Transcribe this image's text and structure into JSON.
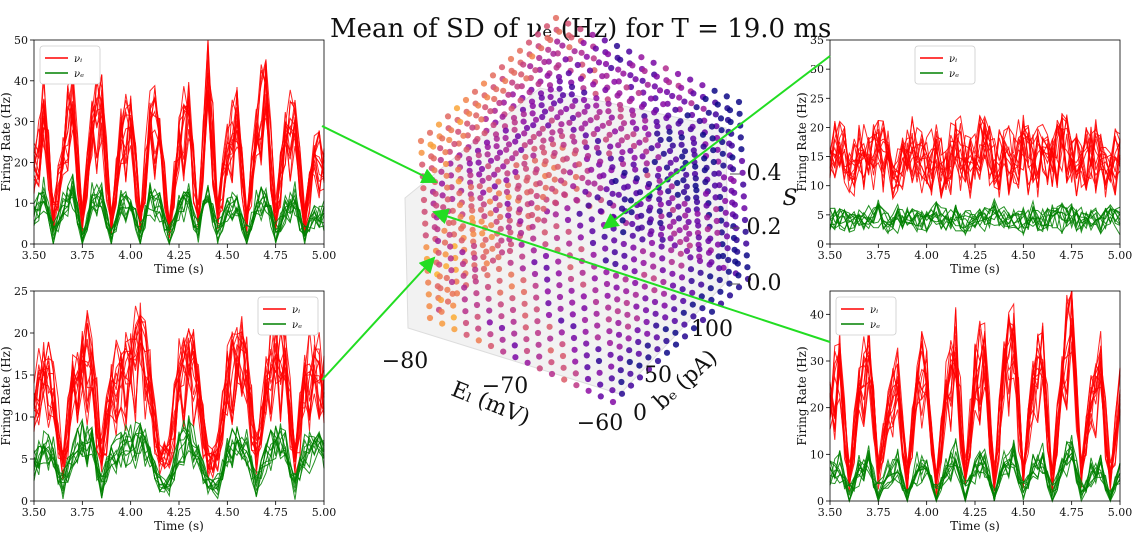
{
  "title": "Mean of SD of νₑ (Hz) for T = 19.0 ms",
  "colors": {
    "nu_i": "#ff0000",
    "nu_e": "#008000",
    "arrow": "#22dd22"
  },
  "cube": {
    "x_label": "Eₗ (mV)",
    "x_ticks": [
      "−80",
      "−70",
      "−60"
    ],
    "y_label": "bₑ (pA)",
    "y_ticks": [
      "0",
      "50",
      "100"
    ],
    "z_label": "S",
    "z_ticks": [
      "0.0",
      "0.2",
      "0.4"
    ],
    "colormap": "plasma"
  },
  "chart_data": [
    {
      "type": "line",
      "position": "top-left",
      "xlabel": "Time (s)",
      "ylabel": "Firing Rate (Hz)",
      "xlim": [
        3.5,
        5.0
      ],
      "ylim": [
        0,
        50
      ],
      "xticks": [
        "3.50",
        "3.75",
        "4.00",
        "4.25",
        "4.50",
        "4.75",
        "5.00"
      ],
      "yticks": [
        "0",
        "10",
        "20",
        "30",
        "40",
        "50"
      ],
      "legend": "top-left",
      "series": [
        {
          "name": "νᵢ",
          "x": [
            3.5,
            3.55,
            3.6,
            3.65,
            3.7,
            3.75,
            3.8,
            3.85,
            3.9,
            3.95,
            4.0,
            4.05,
            4.1,
            4.15,
            4.2,
            4.25,
            4.3,
            4.35,
            4.4,
            4.45,
            4.5,
            4.55,
            4.6,
            4.65,
            4.7,
            4.75,
            4.8,
            4.85,
            4.9,
            4.95,
            5.0
          ],
          "values": [
            20,
            35,
            8,
            22,
            38,
            6,
            30,
            36,
            5,
            28,
            32,
            6,
            33,
            30,
            5,
            27,
            33,
            7,
            46,
            8,
            25,
            32,
            6,
            30,
            40,
            7,
            28,
            32,
            6,
            24,
            20
          ]
        },
        {
          "name": "νₑ",
          "x": [
            3.5,
            3.55,
            3.6,
            3.65,
            3.7,
            3.75,
            3.8,
            3.85,
            3.9,
            3.95,
            4.0,
            4.05,
            4.1,
            4.15,
            4.2,
            4.25,
            4.3,
            4.35,
            4.4,
            4.45,
            4.5,
            4.55,
            4.6,
            4.65,
            4.7,
            4.75,
            4.8,
            4.85,
            4.9,
            4.95,
            5.0
          ],
          "values": [
            8,
            13,
            3,
            9,
            14,
            2,
            11,
            12,
            2,
            10,
            11,
            3,
            12,
            10,
            2,
            9,
            11,
            3,
            14,
            3,
            9,
            11,
            2,
            10,
            12,
            3,
            9,
            11,
            2,
            8,
            7
          ]
        }
      ]
    },
    {
      "type": "line",
      "position": "bottom-left",
      "xlabel": "Time (s)",
      "ylabel": "Firing Rate (Hz)",
      "xlim": [
        3.5,
        5.0
      ],
      "ylim": [
        0,
        25
      ],
      "xticks": [
        "3.50",
        "3.75",
        "4.00",
        "4.25",
        "4.50",
        "4.75",
        "5.00"
      ],
      "yticks": [
        "0",
        "5",
        "10",
        "15",
        "20",
        "25"
      ],
      "legend": "top-right",
      "series": [
        {
          "name": "νᵢ",
          "x": [
            3.5,
            3.55,
            3.6,
            3.65,
            3.7,
            3.75,
            3.8,
            3.85,
            3.9,
            3.95,
            4.0,
            4.05,
            4.1,
            4.15,
            4.2,
            4.25,
            4.3,
            4.35,
            4.4,
            4.45,
            4.5,
            4.55,
            4.6,
            4.65,
            4.7,
            4.75,
            4.8,
            4.85,
            4.9,
            4.95,
            5.0
          ],
          "values": [
            12,
            16,
            14,
            5,
            15,
            18,
            17,
            6,
            14,
            16,
            17,
            20,
            15,
            5,
            6,
            16,
            18,
            14,
            5,
            6,
            15,
            18,
            17,
            6,
            14,
            19,
            18,
            5,
            15,
            17,
            14
          ]
        },
        {
          "name": "νₑ",
          "x": [
            3.5,
            3.55,
            3.6,
            3.65,
            3.7,
            3.75,
            3.8,
            3.85,
            3.9,
            3.95,
            4.0,
            4.05,
            4.1,
            4.15,
            4.2,
            4.25,
            4.3,
            4.35,
            4.4,
            4.45,
            4.5,
            4.55,
            4.6,
            4.65,
            4.7,
            4.75,
            4.8,
            4.85,
            4.9,
            4.95,
            5.0
          ],
          "values": [
            5,
            7,
            6,
            2,
            6,
            8,
            7,
            2,
            6,
            7,
            7,
            8,
            6,
            2,
            2,
            7,
            8,
            6,
            2,
            2,
            6,
            8,
            7,
            2,
            6,
            8,
            7,
            2,
            6,
            7,
            6
          ]
        }
      ]
    },
    {
      "type": "line",
      "position": "top-right",
      "xlabel": "Time (s)",
      "ylabel": "Firing Rate (Hz)",
      "xlim": [
        3.5,
        5.0
      ],
      "ylim": [
        0,
        35
      ],
      "xticks": [
        "3.50",
        "3.75",
        "4.00",
        "4.25",
        "4.50",
        "4.75",
        "5.00"
      ],
      "yticks": [
        "0",
        "5",
        "10",
        "15",
        "20",
        "25",
        "30",
        "35"
      ],
      "legend": "top-center",
      "series": [
        {
          "name": "νᵢ",
          "x": [
            3.5,
            3.55,
            3.6,
            3.65,
            3.7,
            3.75,
            3.8,
            3.85,
            3.9,
            3.95,
            4.0,
            4.05,
            4.1,
            4.15,
            4.2,
            4.25,
            4.3,
            4.35,
            4.4,
            4.45,
            4.5,
            4.55,
            4.6,
            4.65,
            4.7,
            4.75,
            4.8,
            4.85,
            4.9,
            4.95,
            5.0
          ],
          "values": [
            16,
            18,
            14,
            17,
            15,
            19,
            16,
            13,
            18,
            16,
            15,
            17,
            14,
            18,
            16,
            15,
            19,
            14,
            17,
            16,
            18,
            15,
            17,
            14,
            19,
            16,
            15,
            17,
            16,
            14,
            17
          ]
        },
        {
          "name": "νₑ",
          "x": [
            3.5,
            3.55,
            3.6,
            3.65,
            3.7,
            3.75,
            3.8,
            3.85,
            3.9,
            3.95,
            4.0,
            4.05,
            4.1,
            4.15,
            4.2,
            4.25,
            4.3,
            4.35,
            4.4,
            4.45,
            4.5,
            4.55,
            4.6,
            4.65,
            4.7,
            4.75,
            4.8,
            4.85,
            4.9,
            4.95,
            5.0
          ],
          "values": [
            4.5,
            5,
            4,
            5,
            4.5,
            5.5,
            4,
            5,
            4.5,
            5,
            4,
            5.5,
            4.5,
            5,
            4,
            5,
            4.5,
            5.5,
            4,
            5,
            4.5,
            5,
            4,
            5.5,
            4.5,
            5,
            4,
            5,
            4.5,
            5,
            4.5
          ]
        }
      ]
    },
    {
      "type": "line",
      "position": "bottom-right",
      "xlabel": "Time (s)",
      "ylabel": "Firing Rate (Hz)",
      "xlim": [
        3.5,
        5.0
      ],
      "ylim": [
        0,
        45
      ],
      "xticks": [
        "3.50",
        "3.75",
        "4.00",
        "4.25",
        "4.50",
        "4.75",
        "5.00"
      ],
      "yticks": [
        "0",
        "10",
        "20",
        "30",
        "40"
      ],
      "legend": "top-left",
      "series": [
        {
          "name": "νᵢ",
          "x": [
            3.5,
            3.55,
            3.6,
            3.65,
            3.7,
            3.75,
            3.8,
            3.85,
            3.9,
            3.95,
            4.0,
            4.05,
            4.1,
            4.15,
            4.2,
            4.25,
            4.3,
            4.35,
            4.4,
            4.45,
            4.5,
            4.55,
            4.6,
            4.65,
            4.7,
            4.75,
            4.8,
            4.85,
            4.9,
            4.95,
            5.0
          ],
          "values": [
            22,
            30,
            5,
            25,
            32,
            6,
            20,
            27,
            5,
            26,
            30,
            4,
            24,
            35,
            6,
            28,
            33,
            5,
            30,
            36,
            6,
            25,
            34,
            5,
            28,
            42,
            6,
            22,
            30,
            5,
            25
          ]
        },
        {
          "name": "νₑ",
          "x": [
            3.5,
            3.55,
            3.6,
            3.65,
            3.7,
            3.75,
            3.8,
            3.85,
            3.9,
            3.95,
            4.0,
            4.05,
            4.1,
            4.15,
            4.2,
            4.25,
            4.3,
            4.35,
            4.4,
            4.45,
            4.5,
            4.55,
            4.6,
            4.65,
            4.7,
            4.75,
            4.8,
            4.85,
            4.9,
            4.95,
            5.0
          ],
          "values": [
            6,
            8,
            1,
            7,
            9,
            2,
            6,
            8,
            1,
            7,
            8,
            1,
            7,
            10,
            2,
            8,
            9,
            1,
            9,
            10,
            2,
            7,
            9,
            1,
            8,
            12,
            2,
            6,
            8,
            1,
            7
          ]
        }
      ]
    }
  ]
}
